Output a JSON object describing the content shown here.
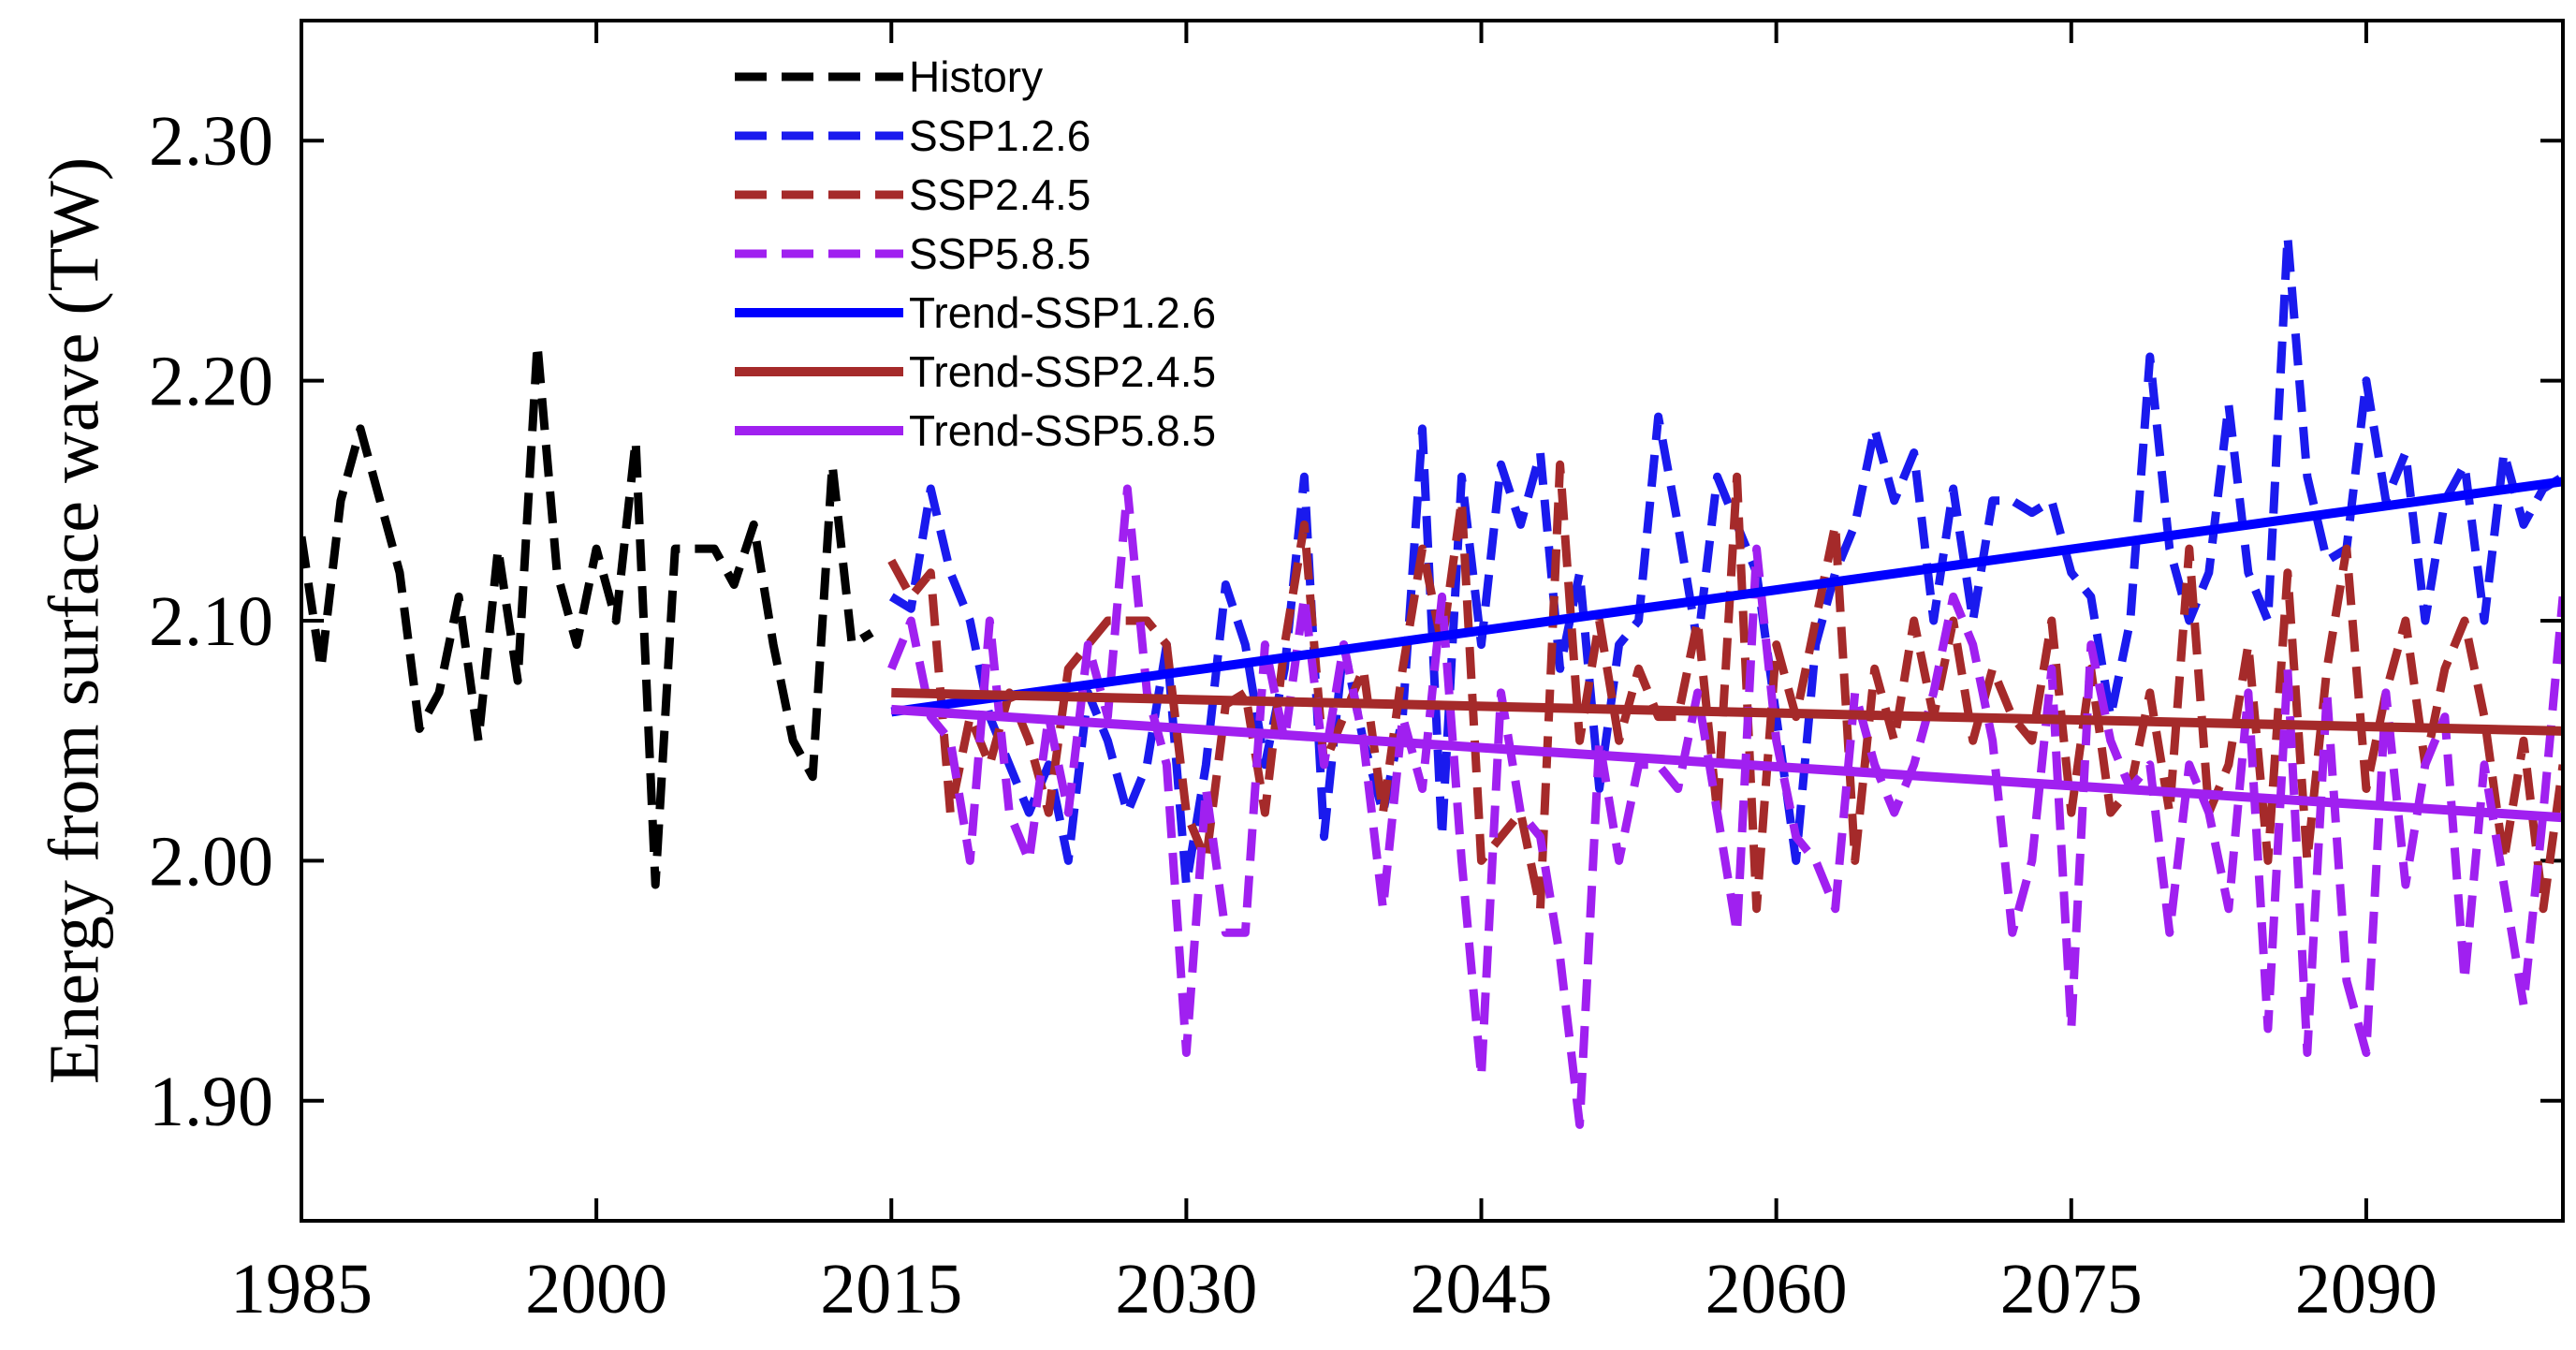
{
  "chart_data": {
    "type": "line",
    "title": "",
    "xlabel": "",
    "ylabel": "Energy from surface wave (TW)",
    "xlim": [
      1985,
      2100
    ],
    "ylim": [
      1.85,
      2.35
    ],
    "x_ticks": [
      1985,
      2000,
      2015,
      2030,
      2045,
      2060,
      2075,
      2090
    ],
    "y_ticks": [
      1.9,
      2.0,
      2.1,
      2.2,
      2.3
    ],
    "y_tick_labels": [
      "1.90",
      "2.00",
      "2.10",
      "2.20",
      "2.30"
    ],
    "legend_position": "top-center",
    "series": [
      {
        "name": "History",
        "style": "dashed",
        "color": "#000000",
        "x": [
          1985,
          1986,
          1987,
          1988,
          1989,
          1990,
          1991,
          1992,
          1993,
          1994,
          1995,
          1996,
          1997,
          1998,
          1999,
          2000,
          2001,
          2002,
          2003,
          2004,
          2005,
          2006,
          2007,
          2008,
          2009,
          2010,
          2011,
          2012,
          2013,
          2014
        ],
        "values": [
          2.135,
          2.08,
          2.15,
          2.18,
          2.15,
          2.12,
          2.055,
          2.07,
          2.11,
          2.05,
          2.13,
          2.075,
          2.215,
          2.12,
          2.09,
          2.13,
          2.1,
          2.175,
          1.99,
          2.13,
          2.13,
          2.13,
          2.115,
          2.14,
          2.09,
          2.05,
          2.035,
          2.165,
          2.09,
          2.095
        ]
      },
      {
        "name": "SSP1.2.6",
        "style": "dashed",
        "color": "#1a1aee",
        "x": [
          2015,
          2016,
          2017,
          2018,
          2019,
          2020,
          2021,
          2022,
          2023,
          2024,
          2025,
          2026,
          2027,
          2028,
          2029,
          2030,
          2031,
          2032,
          2033,
          2034,
          2035,
          2036,
          2037,
          2038,
          2039,
          2040,
          2041,
          2042,
          2043,
          2044,
          2045,
          2046,
          2047,
          2048,
          2049,
          2050,
          2051,
          2052,
          2053,
          2054,
          2055,
          2056,
          2057,
          2058,
          2059,
          2060,
          2061,
          2062,
          2063,
          2064,
          2065,
          2066,
          2067,
          2068,
          2069,
          2070,
          2071,
          2072,
          2073,
          2074,
          2075,
          2076,
          2077,
          2078,
          2079,
          2080,
          2081,
          2082,
          2083,
          2084,
          2085,
          2086,
          2087,
          2088,
          2089,
          2090,
          2091,
          2092,
          2093,
          2094,
          2095,
          2096,
          2097,
          2098,
          2099,
          2100
        ],
        "values": [
          2.11,
          2.105,
          2.155,
          2.12,
          2.1,
          2.06,
          2.04,
          2.02,
          2.04,
          2.0,
          2.07,
          2.05,
          2.02,
          2.04,
          2.09,
          1.99,
          2.04,
          2.115,
          2.09,
          2.04,
          2.08,
          2.16,
          2.01,
          2.09,
          2.05,
          2.02,
          2.06,
          2.18,
          2.01,
          2.16,
          2.09,
          2.165,
          2.14,
          2.17,
          2.08,
          2.12,
          2.03,
          2.09,
          2.1,
          2.185,
          2.14,
          2.09,
          2.16,
          2.14,
          2.12,
          2.06,
          2.0,
          2.09,
          2.12,
          2.14,
          2.18,
          2.15,
          2.17,
          2.1,
          2.155,
          2.1,
          2.15,
          2.15,
          2.145,
          2.15,
          2.12,
          2.11,
          2.06,
          2.1,
          2.21,
          2.13,
          2.1,
          2.12,
          2.19,
          2.12,
          2.1,
          2.26,
          2.16,
          2.125,
          2.13,
          2.2,
          2.15,
          2.17,
          2.1,
          2.15,
          2.165,
          2.1,
          2.17,
          2.14,
          2.155,
          2.16
        ]
      },
      {
        "name": "SSP2.4.5",
        "style": "dashed",
        "color": "#a52a2a",
        "x": [
          2015,
          2016,
          2017,
          2018,
          2019,
          2020,
          2021,
          2022,
          2023,
          2024,
          2025,
          2026,
          2027,
          2028,
          2029,
          2030,
          2031,
          2032,
          2033,
          2034,
          2035,
          2036,
          2037,
          2038,
          2039,
          2040,
          2041,
          2042,
          2043,
          2044,
          2045,
          2046,
          2047,
          2048,
          2049,
          2050,
          2051,
          2052,
          2053,
          2054,
          2055,
          2056,
          2057,
          2058,
          2059,
          2060,
          2061,
          2062,
          2063,
          2064,
          2065,
          2066,
          2067,
          2068,
          2069,
          2070,
          2071,
          2072,
          2073,
          2074,
          2075,
          2076,
          2077,
          2078,
          2079,
          2080,
          2081,
          2082,
          2083,
          2084,
          2085,
          2086,
          2087,
          2088,
          2089,
          2090,
          2091,
          2092,
          2093,
          2094,
          2095,
          2096,
          2097,
          2098,
          2099,
          2100
        ],
        "values": [
          2.125,
          2.11,
          2.12,
          2.02,
          2.06,
          2.04,
          2.07,
          2.05,
          2.02,
          2.08,
          2.09,
          2.1,
          2.1,
          2.1,
          2.09,
          2.02,
          2.0,
          2.065,
          2.07,
          2.02,
          2.09,
          2.14,
          2.04,
          2.06,
          2.08,
          2.02,
          2.08,
          2.13,
          2.09,
          2.15,
          2.0,
          2.01,
          2.02,
          1.98,
          2.165,
          2.05,
          2.1,
          2.05,
          2.08,
          2.06,
          2.06,
          2.1,
          2.02,
          2.16,
          1.98,
          2.09,
          2.06,
          2.1,
          2.14,
          2.0,
          2.08,
          2.05,
          2.1,
          2.06,
          2.1,
          2.05,
          2.08,
          2.06,
          2.05,
          2.1,
          2.02,
          2.08,
          2.02,
          2.03,
          2.07,
          2.02,
          2.13,
          2.02,
          2.04,
          2.09,
          2.0,
          2.12,
          2.0,
          2.08,
          2.13,
          2.03,
          2.07,
          2.1,
          2.04,
          2.08,
          2.1,
          2.06,
          2.0,
          2.05,
          1.98,
          2.04
        ]
      },
      {
        "name": "SSP5.8.5",
        "style": "dashed",
        "color": "#a020f0",
        "x": [
          2015,
          2016,
          2017,
          2018,
          2019,
          2020,
          2021,
          2022,
          2023,
          2024,
          2025,
          2026,
          2027,
          2028,
          2029,
          2030,
          2031,
          2032,
          2033,
          2034,
          2035,
          2036,
          2037,
          2038,
          2039,
          2040,
          2041,
          2042,
          2043,
          2044,
          2045,
          2046,
          2047,
          2048,
          2049,
          2050,
          2051,
          2052,
          2053,
          2054,
          2055,
          2056,
          2057,
          2058,
          2059,
          2060,
          2061,
          2062,
          2063,
          2064,
          2065,
          2066,
          2067,
          2068,
          2069,
          2070,
          2071,
          2072,
          2073,
          2074,
          2075,
          2076,
          2077,
          2078,
          2079,
          2080,
          2081,
          2082,
          2083,
          2084,
          2085,
          2086,
          2087,
          2088,
          2089,
          2090,
          2091,
          2092,
          2093,
          2094,
          2095,
          2096,
          2097,
          2098,
          2099,
          2100
        ],
        "values": [
          2.08,
          2.1,
          2.06,
          2.05,
          2.0,
          2.1,
          2.02,
          2.0,
          2.06,
          2.02,
          2.09,
          2.06,
          2.155,
          2.07,
          2.04,
          1.92,
          2.03,
          1.97,
          1.97,
          2.09,
          2.05,
          2.11,
          2.04,
          2.09,
          2.05,
          1.98,
          2.06,
          2.03,
          2.11,
          2.0,
          1.91,
          2.07,
          2.02,
          2.01,
          1.96,
          1.89,
          2.05,
          2.0,
          2.04,
          2.04,
          2.03,
          2.07,
          2.02,
          1.97,
          2.13,
          2.05,
          2.01,
          2.0,
          1.98,
          2.07,
          2.04,
          2.02,
          2.04,
          2.07,
          2.11,
          2.09,
          2.05,
          1.97,
          2.0,
          2.08,
          1.93,
          2.09,
          2.05,
          2.03,
          2.04,
          1.97,
          2.04,
          2.02,
          1.98,
          2.07,
          1.93,
          2.08,
          1.92,
          2.07,
          1.95,
          1.92,
          2.07,
          1.99,
          2.04,
          2.06,
          1.95,
          2.04,
          1.99,
          1.94,
          2.02,
          2.11
        ]
      },
      {
        "name": "Trend-SSP1.2.6",
        "style": "solid",
        "color": "#0000ff",
        "x": [
          2015,
          2100
        ],
        "values": [
          2.062,
          2.158
        ]
      },
      {
        "name": "Trend-SSP2.4.5",
        "style": "solid",
        "color": "#a52a2a",
        "x": [
          2015,
          2100
        ],
        "values": [
          2.07,
          2.054
        ]
      },
      {
        "name": "Trend-SSP5.8.5",
        "style": "solid",
        "color": "#a020f0",
        "x": [
          2015,
          2100
        ],
        "values": [
          2.063,
          2.018
        ]
      }
    ]
  }
}
